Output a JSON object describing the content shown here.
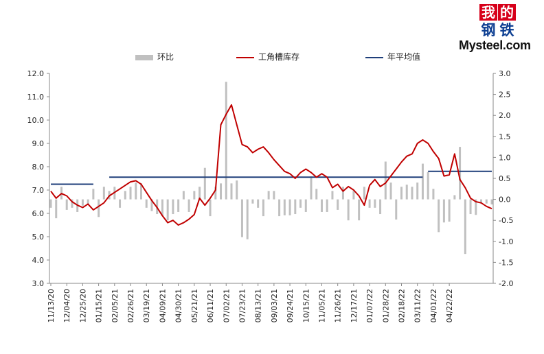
{
  "logo": {
    "line1": [
      "我",
      "的"
    ],
    "line2": [
      "钢",
      "铁"
    ],
    "word": "Mysteel.com"
  },
  "colors": {
    "bar": "#c0c0c0",
    "line": "#c00000",
    "avg": "#1f3f7a",
    "axis": "#888888",
    "logo_red": "#d7001a",
    "logo_blue": "#0b3d91"
  },
  "chart_data": {
    "type": "bar",
    "legend": {
      "placement": "top",
      "items": [
        "环比",
        "工角槽库存",
        "年平均值"
      ]
    },
    "left_axis": {
      "ylim": [
        3.0,
        12.0
      ],
      "ticks": [
        "3.0",
        "4.0",
        "5.0",
        "6.0",
        "7.0",
        "8.0",
        "9.0",
        "10.0",
        "11.0",
        "12.0"
      ]
    },
    "right_axis": {
      "ylim": [
        -2.0,
        3.0
      ],
      "ticks": [
        "-2.0",
        "-1.5",
        "-1.0",
        "-0.5",
        "0.0",
        "0.5",
        "1.0",
        "1.5",
        "2.0",
        "2.5",
        "3.0"
      ]
    },
    "x_tick_labels": [
      "11/13/20",
      "12/04/20",
      "12/25/20",
      "01/15/21",
      "02/05/21",
      "02/26/21",
      "03/19/21",
      "04/09/21",
      "04/30/21",
      "05/21/21",
      "06/11/21",
      "07/02/21",
      "07/23/21",
      "08/13/21",
      "09/03/21",
      "09/24/21",
      "10/15/21",
      "11/05/21",
      "11/26/21",
      "12/17/21",
      "01/07/22",
      "01/28/22",
      "02/18/22",
      "03/11/22",
      "04/01/22",
      "04/22/22"
    ],
    "series": [
      {
        "name": "环比",
        "type": "bar",
        "axis": "right",
        "values": [
          -0.2,
          -0.45,
          0.3,
          -0.25,
          -0.2,
          -0.3,
          -0.15,
          -0.12,
          0.25,
          -0.42,
          0.3,
          0.2,
          0.3,
          -0.2,
          0.2,
          0.3,
          0.4,
          0.38,
          -0.2,
          -0.28,
          -0.35,
          -0.4,
          -0.5,
          -0.35,
          -0.3,
          0.2,
          -0.3,
          0.2,
          0.3,
          0.75,
          -0.4,
          0.3,
          0.38,
          2.8,
          0.38,
          0.45,
          -0.9,
          -0.95,
          -0.1,
          -0.2,
          -0.4,
          0.2,
          0.2,
          -0.4,
          -0.38,
          -0.38,
          -0.35,
          -0.2,
          -0.3,
          0.55,
          0.25,
          -0.3,
          -0.3,
          0.2,
          -0.25,
          0.3,
          -0.5,
          0.2,
          -0.5,
          0.3,
          -0.2,
          -0.2,
          -0.35,
          0.9,
          0.4,
          -0.48,
          0.3,
          0.35,
          0.3,
          0.4,
          0.85,
          0.65,
          0.25,
          -0.78,
          -0.55,
          -0.53,
          0.1,
          1.25,
          -1.3,
          -0.35,
          -0.37,
          -0.1,
          -0.1,
          -0.12
        ]
      },
      {
        "name": "工角槽库存",
        "type": "line",
        "axis": "left",
        "values": [
          6.95,
          6.65,
          6.85,
          6.75,
          6.5,
          6.35,
          6.25,
          6.4,
          6.15,
          6.3,
          6.45,
          6.75,
          6.9,
          7.05,
          7.2,
          7.35,
          7.4,
          7.25,
          6.9,
          6.55,
          6.25,
          5.9,
          5.6,
          5.7,
          5.5,
          5.6,
          5.75,
          5.95,
          6.65,
          6.35,
          6.65,
          7.0,
          9.8,
          10.25,
          10.65,
          9.8,
          8.95,
          8.85,
          8.6,
          8.75,
          8.85,
          8.6,
          8.3,
          8.05,
          7.8,
          7.7,
          7.5,
          7.75,
          7.9,
          7.75,
          7.55,
          7.7,
          7.55,
          7.1,
          7.25,
          6.95,
          7.15,
          7.0,
          6.75,
          6.35,
          7.2,
          7.45,
          7.15,
          7.3,
          7.6,
          7.9,
          8.2,
          8.45,
          8.55,
          9.0,
          9.15,
          9.0,
          8.65,
          8.35,
          7.6,
          7.65,
          8.55,
          7.45,
          7.1,
          6.65,
          6.5,
          6.45,
          6.3,
          6.2
        ]
      },
      {
        "name": "年平均值",
        "type": "step",
        "axis": "left",
        "segments": [
          {
            "from_index": 0,
            "to_index": 8,
            "value": 7.25
          },
          {
            "from_index": 11,
            "to_index": 70,
            "value": 7.55
          },
          {
            "from_index": 71,
            "to_index": 83,
            "value": 7.8
          }
        ]
      }
    ]
  }
}
